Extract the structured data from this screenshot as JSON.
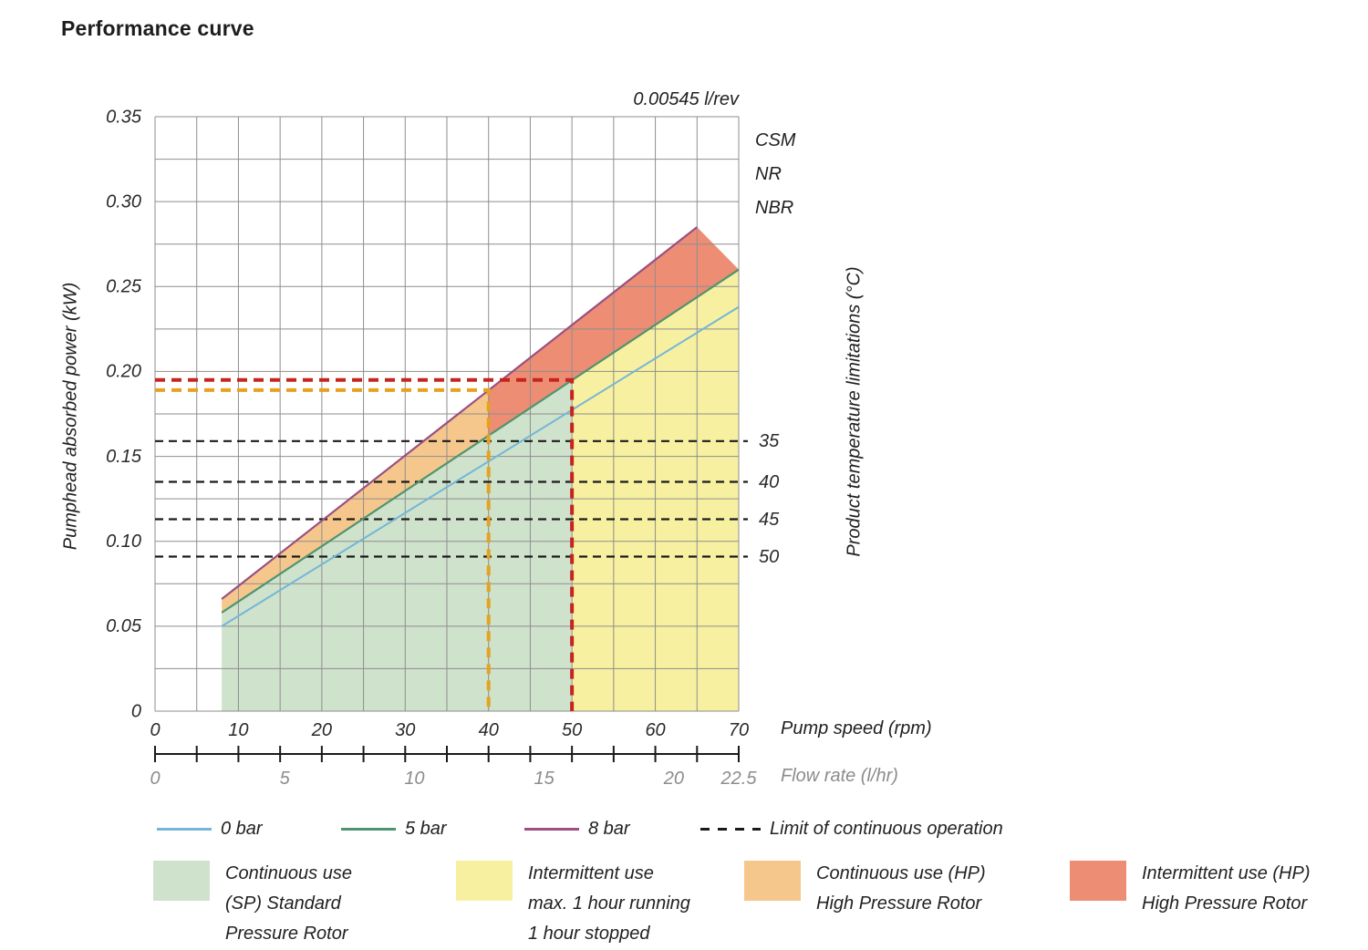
{
  "page_title": "Performance curve",
  "annotation": "0.00545 l/rev",
  "materials": [
    "CSM",
    "NR",
    "NBR"
  ],
  "chart_data": {
    "type": "line",
    "title": "Performance curve",
    "grid": true,
    "x_axis": {
      "label": "Pump speed (rpm)",
      "min": 0,
      "max": 70,
      "grid_step": 5,
      "ticks": [
        0,
        10,
        20,
        30,
        40,
        50,
        60,
        70
      ]
    },
    "y_axis": {
      "label": "Pumphead absorbed power (kW)",
      "min": 0,
      "max": 0.35,
      "grid_step": 0.025,
      "ticks": [
        {
          "label": "0.35",
          "value": 0.35
        },
        {
          "label": "0.30",
          "value": 0.3
        },
        {
          "label": "0.25",
          "value": 0.25
        },
        {
          "label": "0.20",
          "value": 0.2
        },
        {
          "label": "0.15",
          "value": 0.15
        },
        {
          "label": "0.10",
          "value": 0.1
        },
        {
          "label": "0.05",
          "value": 0.05
        },
        {
          "label": "0",
          "value": 0
        }
      ]
    },
    "flow_axis": {
      "label": "Flow rate (l/hr)",
      "min": 0,
      "max": 22.5,
      "n_ruler_ticks": 15,
      "ticks": [
        {
          "label": "0",
          "value": 0
        },
        {
          "label": "5",
          "value": 5
        },
        {
          "label": "10",
          "value": 10
        },
        {
          "label": "15",
          "value": 15
        },
        {
          "label": "20",
          "value": 20
        },
        {
          "label": "22.5",
          "value": 22.5
        }
      ]
    },
    "right_axis": {
      "label": "Product temperature limitations (°C)"
    },
    "temperature_lines": [
      {
        "label": "35",
        "kw": 0.159
      },
      {
        "label": "40",
        "kw": 0.135
      },
      {
        "label": "45",
        "kw": 0.113
      },
      {
        "label": "50",
        "kw": 0.091
      }
    ],
    "series": [
      {
        "name": "0 bar",
        "color": "#74b6d8",
        "width": 2,
        "points": [
          [
            8,
            0.05
          ],
          [
            70,
            0.238
          ]
        ]
      },
      {
        "name": "5 bar",
        "color": "#4f9470",
        "width": 2.2,
        "points": [
          [
            8,
            0.058
          ],
          [
            70,
            0.26
          ]
        ]
      },
      {
        "name": "8 bar",
        "color": "#9b4f82",
        "width": 2.2,
        "points": [
          [
            8,
            0.066
          ],
          [
            65,
            0.285
          ]
        ]
      }
    ],
    "regions": [
      {
        "name": "Continuous use (SP) Standard Pressure Rotor",
        "color": "#cfe2cc",
        "points": [
          [
            8,
            0
          ],
          [
            8,
            0.058
          ],
          [
            50,
            0.195
          ],
          [
            50,
            0
          ]
        ]
      },
      {
        "name": "Intermittent use max. 1 hour running 1 hour stopped",
        "color": "#f7f0a1",
        "points": [
          [
            50,
            0
          ],
          [
            50,
            0.195
          ],
          [
            70,
            0.26
          ],
          [
            70,
            0
          ]
        ]
      },
      {
        "name": "Continuous use (HP) High Pressure Rotor",
        "color": "#f6c78c",
        "points": [
          [
            8,
            0.058
          ],
          [
            8,
            0.066
          ],
          [
            40,
            0.189
          ],
          [
            40,
            0.162
          ]
        ]
      },
      {
        "name": "Intermittent use (HP) High Pressure Rotor",
        "color": "#ed8d74",
        "points": [
          [
            40,
            0.162
          ],
          [
            40,
            0.189
          ],
          [
            65,
            0.285
          ],
          [
            70,
            0.26
          ]
        ]
      }
    ],
    "limits": [
      {
        "name": "SP rotor limit of continuous operation",
        "color": "#c6241e",
        "rpm": 50,
        "kw": 0.195
      },
      {
        "name": "HP rotor limit of continuous operation",
        "color": "#e6a21f",
        "rpm": 40,
        "kw": 0.189
      }
    ]
  },
  "legend": {
    "lines": [
      {
        "label": "0 bar",
        "color": "#74b6d8",
        "style": "solid"
      },
      {
        "label": "5 bar",
        "color": "#4f9470",
        "style": "solid"
      },
      {
        "label": "8 bar",
        "color": "#9b4f82",
        "style": "solid"
      },
      {
        "label": "Limit of continuous operation",
        "color": "#1a1a1a",
        "style": "dashed"
      }
    ],
    "areas": [
      {
        "label": "Continuous use\n(SP) Standard\nPressure Rotor",
        "color": "#cfe2cc"
      },
      {
        "label": "Intermittent use\nmax. 1 hour running\n1 hour stopped",
        "color": "#f7f0a1"
      },
      {
        "label": "Continuous use (HP)\nHigh Pressure Rotor",
        "color": "#f6c78c"
      },
      {
        "label": "Intermittent use (HP)\nHigh Pressure Rotor",
        "color": "#ed8d74"
      }
    ]
  },
  "colors": {
    "grid": "#8e8e8e",
    "temp_dash": "#1b1b1b",
    "tick_text": "#2a2a2a",
    "flow_text": "#8c8c8c"
  }
}
